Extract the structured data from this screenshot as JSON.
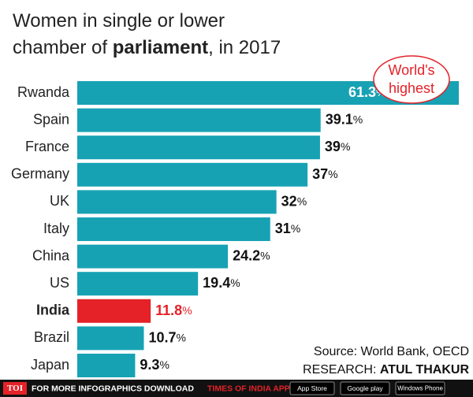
{
  "chart_data": {
    "type": "bar",
    "orientation": "horizontal",
    "title_lines": [
      [
        {
          "text": "Women in single or lower",
          "bold": false
        }
      ],
      [
        {
          "text": "chamber of ",
          "bold": false
        },
        {
          "text": "parliament",
          "bold": true
        },
        {
          "text": ", in 2017",
          "bold": false
        }
      ]
    ],
    "categories": [
      "Rwanda",
      "Spain",
      "France",
      "Germany",
      "UK",
      "Italy",
      "China",
      "US",
      "India",
      "Brazil",
      "Japan"
    ],
    "values": [
      61.3,
      39.1,
      39,
      37,
      32,
      31,
      24.2,
      19.4,
      11.8,
      10.7,
      9.3
    ],
    "value_labels": [
      "61.3%",
      "39.1%",
      "39%",
      "37%",
      "32%",
      "31%",
      "24.2%",
      "19.4%",
      "11.8%",
      "10.7%",
      "9.3%"
    ],
    "colors": [
      "#17a2b4",
      "#17a2b4",
      "#17a2b4",
      "#17a2b4",
      "#17a2b4",
      "#17a2b4",
      "#17a2b4",
      "#17a2b4",
      "#e42228",
      "#17a2b4",
      "#17a2b4"
    ],
    "xlim": [
      0,
      61.3
    ],
    "annotation_lines": [
      "World's",
      "highest"
    ],
    "annotation_color": "#e42228",
    "source": "Source: World Bank, OECD",
    "research": [
      {
        "text": "RESEARCH: ",
        "bold": false
      },
      {
        "text": "ATUL THAKUR",
        "bold": true
      }
    ],
    "footer": {
      "logo": "TOI",
      "text": "FOR MORE INFOGRAPHICS DOWNLOAD",
      "app": "TIMES OF INDIA APP",
      "badges": [
        "App Store",
        "Google play",
        "Windows Phone"
      ]
    }
  }
}
